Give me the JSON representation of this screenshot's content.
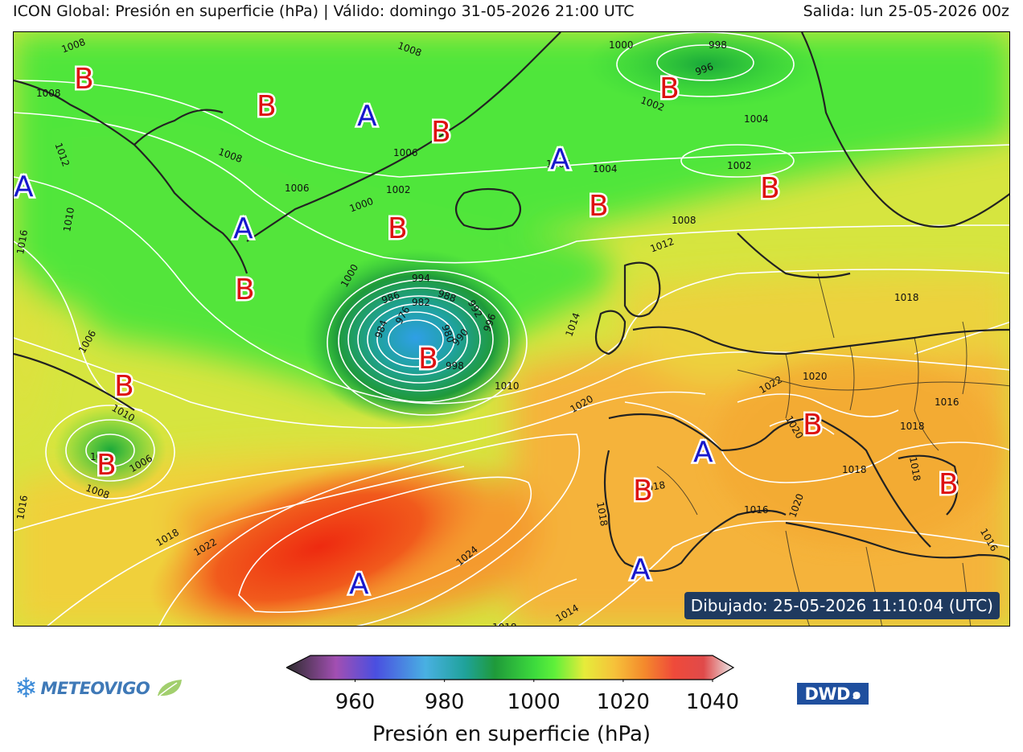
{
  "header": {
    "title": "ICON Global: Presión en superficie (hPa) | Válido: domingo 31-05-2026 21:00 UTC",
    "run": "Salida: lun 25-05-2026 00z"
  },
  "map": {
    "variable": "Presión en superficie (hPa)",
    "drawn_label": "Dibujado: 25-05-2026 11:10:04 (UTC)",
    "isobar_labels": [
      {
        "text": "1008"
      },
      {
        "text": "1008"
      },
      {
        "text": "1008"
      },
      {
        "text": "1012"
      },
      {
        "text": "1008"
      },
      {
        "text": "1006"
      },
      {
        "text": "1002"
      },
      {
        "text": "1000"
      },
      {
        "text": "1006"
      },
      {
        "text": "1006"
      },
      {
        "text": "1004"
      },
      {
        "text": "1000"
      },
      {
        "text": "998"
      },
      {
        "text": "996"
      },
      {
        "text": "1002"
      },
      {
        "text": "1004"
      },
      {
        "text": "1002"
      },
      {
        "text": "1008"
      },
      {
        "text": "1012"
      },
      {
        "text": "1010"
      },
      {
        "text": "1016"
      },
      {
        "text": "1000"
      },
      {
        "text": "994"
      },
      {
        "text": "988"
      },
      {
        "text": "986"
      },
      {
        "text": "982"
      },
      {
        "text": "992"
      },
      {
        "text": "976"
      },
      {
        "text": "984"
      },
      {
        "text": "980"
      },
      {
        "text": "990"
      },
      {
        "text": "996"
      },
      {
        "text": "998"
      },
      {
        "text": "1010"
      },
      {
        "text": "1014"
      },
      {
        "text": "1006"
      },
      {
        "text": "1010"
      },
      {
        "text": "1002"
      },
      {
        "text": "1006"
      },
      {
        "text": "1008"
      },
      {
        "text": "1016"
      },
      {
        "text": "1018"
      },
      {
        "text": "1022"
      },
      {
        "text": "1024"
      },
      {
        "text": "1020"
      },
      {
        "text": "1018"
      },
      {
        "text": "1014"
      },
      {
        "text": "1018"
      },
      {
        "text": "1020"
      },
      {
        "text": "1022"
      },
      {
        "text": "1020"
      },
      {
        "text": "1016"
      },
      {
        "text": "1018"
      },
      {
        "text": "1018"
      },
      {
        "text": "1018"
      },
      {
        "text": "1018"
      },
      {
        "text": "1016"
      },
      {
        "text": "1020"
      },
      {
        "text": "1016"
      },
      {
        "text": "1018"
      }
    ],
    "pressure_systems": [
      {
        "type": "B"
      },
      {
        "type": "B"
      },
      {
        "type": "A"
      },
      {
        "type": "B"
      },
      {
        "type": "B"
      },
      {
        "type": "A"
      },
      {
        "type": "A"
      },
      {
        "type": "B"
      },
      {
        "type": "B"
      },
      {
        "type": "B"
      },
      {
        "type": "A"
      },
      {
        "type": "B"
      },
      {
        "type": "B"
      },
      {
        "type": "B"
      },
      {
        "type": "B"
      },
      {
        "type": "A"
      },
      {
        "type": "B"
      },
      {
        "type": "B"
      },
      {
        "type": "A"
      },
      {
        "type": "B"
      },
      {
        "type": "A"
      },
      {
        "type": "A"
      }
    ]
  },
  "colorbar": {
    "label": "Presión en superficie (hPa)",
    "min": 950,
    "max": 1040,
    "ticks": [
      "960",
      "980",
      "1000",
      "1020",
      "1040"
    ],
    "tick_values": [
      960,
      980,
      1000,
      1020,
      1040
    ],
    "stops": [
      {
        "value": 950,
        "color": "#2b2b2b"
      },
      {
        "value": 960,
        "color": "#a24fb2"
      },
      {
        "value": 968,
        "color": "#4a4fe0"
      },
      {
        "value": 978,
        "color": "#49b0e2"
      },
      {
        "value": 986,
        "color": "#1fa29a"
      },
      {
        "value": 992,
        "color": "#1f9a3a"
      },
      {
        "value": 1000,
        "color": "#3ddb3d"
      },
      {
        "value": 1004,
        "color": "#5ff03a"
      },
      {
        "value": 1010,
        "color": "#e6ec3a"
      },
      {
        "value": 1016,
        "color": "#f6c23a"
      },
      {
        "value": 1022,
        "color": "#f48a2c"
      },
      {
        "value": 1028,
        "color": "#ef4a3a"
      },
      {
        "value": 1034,
        "color": "#e04a4a"
      },
      {
        "value": 1040,
        "color": "#eaeaea"
      }
    ]
  },
  "logos": {
    "left": "METEOVIGO",
    "right": "DWD"
  },
  "colors": {
    "low_marker": "#dd1111",
    "high_marker": "#1818cc",
    "isobar": "#ffffff",
    "coastline": "#222222",
    "badge_bg": "#1f3a5f"
  }
}
